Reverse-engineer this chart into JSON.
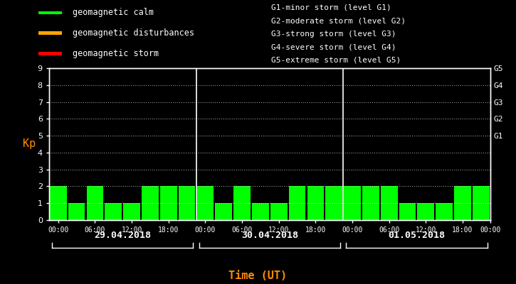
{
  "background_color": "#000000",
  "bar_color": "#00ff00",
  "text_color": "#ffffff",
  "ylabel_color": "#ff8c00",
  "xlabel_color": "#ff8c00",
  "ylabel": "Kp",
  "xlabel": "Time (UT)",
  "ylim": [
    0,
    9
  ],
  "yticks": [
    0,
    1,
    2,
    3,
    4,
    5,
    6,
    7,
    8,
    9
  ],
  "right_labels": [
    "G5",
    "G4",
    "G3",
    "G2",
    "G1"
  ],
  "right_label_yvals": [
    9,
    8,
    7,
    6,
    5
  ],
  "days": [
    "29.04.2018",
    "30.04.2018",
    "01.05.2018"
  ],
  "kp_values": [
    2,
    1,
    2,
    1,
    1,
    2,
    2,
    2,
    2,
    1,
    2,
    1,
    1,
    2,
    2,
    2,
    2,
    2,
    2,
    1,
    1,
    1,
    2,
    2
  ],
  "legend_items": [
    {
      "label": "geomagnetic calm",
      "color": "#00ff00"
    },
    {
      "label": "geomagnetic disturbances",
      "color": "#ffa500"
    },
    {
      "label": "geomagnetic storm",
      "color": "#ff0000"
    }
  ],
  "g_legend_lines": [
    "G1-minor storm (level G1)",
    "G2-moderate storm (level G2)",
    "G3-strong storm (level G3)",
    "G4-severe storm (level G4)",
    "G5-extreme storm (level G5)"
  ],
  "separator_color": "#ffffff",
  "time_labels": [
    "00:00",
    "06:00",
    "12:00",
    "18:00"
  ]
}
